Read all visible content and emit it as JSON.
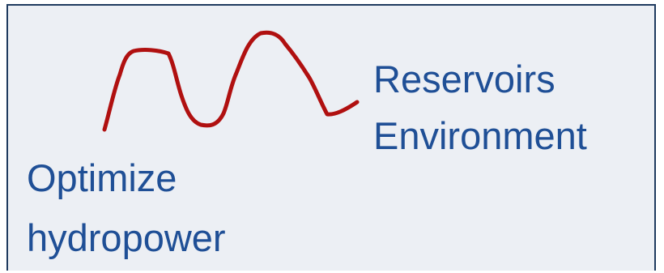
{
  "labels": {
    "reservoirs": "Reservoirs",
    "environment": "Environment",
    "optimize": "Optimize",
    "hydropower": "hydropower"
  },
  "colors": {
    "curve": "#b01010",
    "text": "#1f4f96",
    "panel_background": "#eceff4",
    "panel_border": "#1f3a5f"
  }
}
